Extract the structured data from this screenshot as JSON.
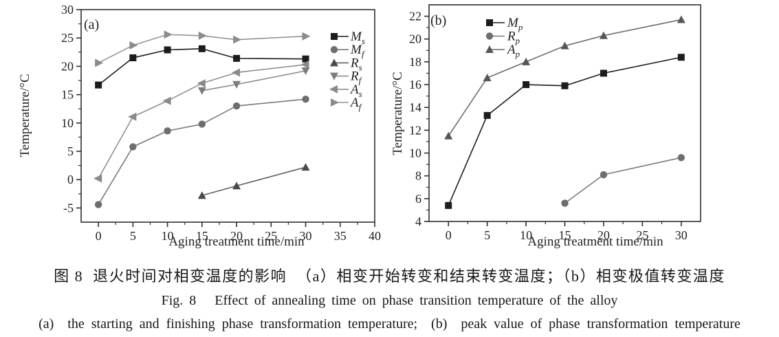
{
  "figure": {
    "caption_cn": "图 8  退火时间对相变温度的影响  （a）相变开始转变和结束转变温度；（b）相变极值转变温度",
    "caption_en": "Fig. 8   Effect of annealing time on phase transition temperature of the alloy",
    "caption_sub": "(a)  the starting and finishing phase transformation temperature;  (b)  peak value of phase transformation temperature"
  },
  "colors": {
    "axis": "#2e2e2e",
    "black_series": "#1c1c1c",
    "gray_series": "#7a7a7a"
  },
  "chart_data": [
    {
      "id": "a",
      "type": "line",
      "panel": "(a)",
      "xlabel": "Aging treatment time/min",
      "ylabel": "Temperature/°C",
      "xlim": [
        -2.5,
        40
      ],
      "ylim": [
        -7.5,
        30
      ],
      "xticks": [
        0,
        5,
        10,
        15,
        20,
        25,
        30,
        35,
        40
      ],
      "yticks": [
        -5,
        0,
        5,
        10,
        15,
        20,
        25,
        30
      ],
      "x_minor_step": 2.5,
      "y_minor_step": 2.5,
      "grid": false,
      "legend_position": "inside-right-top",
      "series": [
        {
          "name": "M",
          "sub": "s",
          "marker": "square",
          "color": "#1c1c1c",
          "line": "#1c1c1c",
          "x": [
            0,
            5,
            10,
            15,
            20,
            30
          ],
          "y": [
            16.7,
            21.5,
            22.9,
            23.1,
            21.4,
            21.3
          ]
        },
        {
          "name": "M",
          "sub": "f",
          "marker": "circle",
          "color": "#6e6e6e",
          "line": "#7a7a7a",
          "x": [
            0,
            5,
            10,
            15,
            20,
            30
          ],
          "y": [
            -4.4,
            5.8,
            8.6,
            9.8,
            13.0,
            14.2
          ]
        },
        {
          "name": "R",
          "sub": "s",
          "marker": "triangle-up",
          "color": "#4a4a4a",
          "line": "#606060",
          "x": [
            15,
            20,
            30
          ],
          "y": [
            -2.8,
            -1.1,
            2.2
          ]
        },
        {
          "name": "R",
          "sub": "f",
          "marker": "triangle-down",
          "color": "#7d7d7d",
          "line": "#8a8a8a",
          "x": [
            15,
            20,
            30
          ],
          "y": [
            15.7,
            16.8,
            19.2
          ]
        },
        {
          "name": "A",
          "sub": "s",
          "marker": "triangle-left",
          "color": "#8a8a8a",
          "line": "#8f8f8f",
          "x": [
            0,
            5,
            10,
            15,
            20,
            30
          ],
          "y": [
            0.2,
            11.1,
            13.9,
            17.0,
            18.9,
            20.3
          ]
        },
        {
          "name": "A",
          "sub": "f",
          "marker": "triangle-right",
          "color": "#8c8c8c",
          "line": "#949494",
          "x": [
            0,
            5,
            10,
            15,
            20,
            30
          ],
          "y": [
            20.6,
            23.7,
            25.6,
            25.4,
            24.7,
            25.3
          ]
        }
      ]
    },
    {
      "id": "b",
      "type": "line",
      "panel": "(b)",
      "xlabel": "Aging treatment time/min",
      "ylabel": "Temperature/°C",
      "xlim": [
        -2.5,
        32.5
      ],
      "ylim": [
        4,
        23
      ],
      "xticks": [
        0,
        5,
        10,
        15,
        20,
        25,
        30
      ],
      "yticks": [
        4,
        6,
        8,
        10,
        12,
        14,
        16,
        18,
        20,
        22
      ],
      "x_minor_step": 2.5,
      "y_minor_step": 1,
      "grid": false,
      "legend_position": "inside-left-top",
      "series": [
        {
          "name": "M",
          "sub": "p",
          "marker": "square",
          "color": "#1c1c1c",
          "line": "#1c1c1c",
          "x": [
            0,
            5,
            10,
            15,
            20,
            30
          ],
          "y": [
            5.4,
            13.3,
            16.0,
            15.9,
            17.0,
            18.4
          ]
        },
        {
          "name": "R",
          "sub": "p",
          "marker": "circle",
          "color": "#6e6e6e",
          "line": "#7a7a7a",
          "x": [
            15,
            20,
            30
          ],
          "y": [
            5.6,
            8.1,
            9.6
          ]
        },
        {
          "name": "A",
          "sub": "p",
          "marker": "triangle-up",
          "color": "#565656",
          "line": "#6b6b6b",
          "x": [
            0,
            5,
            10,
            15,
            20,
            30
          ],
          "y": [
            11.5,
            16.6,
            18.0,
            19.4,
            20.3,
            21.7
          ]
        }
      ]
    }
  ]
}
